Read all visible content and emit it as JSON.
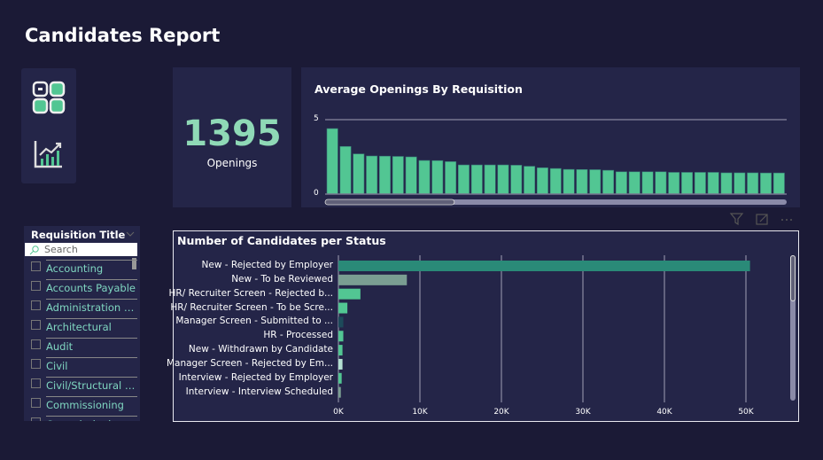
{
  "page_title": "Candidates Report",
  "nav": {
    "icons": [
      "dashboard-grid-icon",
      "growth-chart-icon"
    ]
  },
  "kpi": {
    "value": "1395",
    "label": "Openings"
  },
  "visual_header_icons": [
    "filter-icon",
    "focus-mode-icon",
    "more-options-icon"
  ],
  "colors": {
    "background": "#1b1a36",
    "panel": "#242548",
    "accent": "#52c693",
    "kpi": "#8fd9b6"
  },
  "slicer": {
    "title": "Requisition Title",
    "search_placeholder": "Search",
    "items": [
      "Accounting",
      "Accounts Payable",
      "Administration (G...",
      "Architectural",
      "Audit",
      "Civil",
      "Civil/Structural De...",
      "Commissioning",
      "Commissioning (E..."
    ]
  },
  "chart_data": [
    {
      "type": "bar",
      "title": "Average Openings By Requisition",
      "ylim": [
        0,
        5
      ],
      "yticks": [
        "0",
        "5"
      ],
      "grid": true,
      "values": [
        4.4,
        3.2,
        2.7,
        2.56,
        2.55,
        2.53,
        2.5,
        2.26,
        2.25,
        2.18,
        1.96,
        1.96,
        1.96,
        1.96,
        1.94,
        1.87,
        1.77,
        1.72,
        1.66,
        1.65,
        1.64,
        1.6,
        1.5,
        1.5,
        1.5,
        1.5,
        1.46,
        1.46,
        1.46,
        1.46,
        1.43,
        1.43,
        1.43,
        1.42,
        1.42
      ],
      "scroll_position": 0.28
    },
    {
      "type": "bar",
      "orientation": "horizontal",
      "title": "Number of Candidates per Status",
      "xlim": [
        0,
        56000
      ],
      "xticks": [
        "0K",
        "10K",
        "20K",
        "30K",
        "40K",
        "50K"
      ],
      "grid": true,
      "categories": [
        "New - Rejected by Employer",
        "New - To be Reviewed",
        "HR/ Recruiter Screen - Rejected b...",
        "HR/ Recruiter Screen - To be Scre...",
        "Manager Screen - Submitted to ...",
        "HR - Processed",
        "New - Withdrawn by Candidate",
        "Manager Screen - Rejected by Em...",
        "Interview - Rejected by Employer",
        "Interview - Interview Scheduled"
      ],
      "values": [
        50500,
        8400,
        2700,
        1100,
        600,
        600,
        500,
        500,
        400,
        300
      ],
      "bar_colors": [
        "#2a8a78",
        "#7a9e92",
        "#52c693",
        "#52c693",
        "#1d4a5a",
        "#52c693",
        "#52c693",
        "#b4e0d2",
        "#52c693",
        "#7a9e92"
      ]
    }
  ]
}
